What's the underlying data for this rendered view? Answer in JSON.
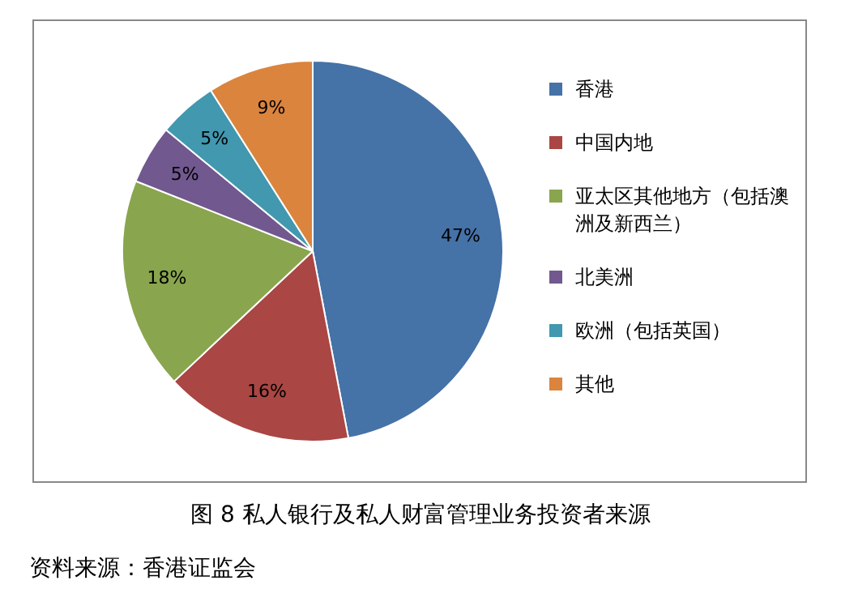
{
  "chart_data": {
    "type": "pie",
    "title": "图 8 私人银行及私人财富管理业务投资者来源",
    "categories": [
      "香港",
      "中国内地",
      "亚太区其他地方（包括澳洲及新西兰）",
      "北美洲",
      "欧洲（包括英国）",
      "其他"
    ],
    "values": [
      47,
      16,
      18,
      5,
      5,
      9
    ],
    "value_labels": [
      "47%",
      "16%",
      "18%",
      "5%",
      "5%",
      "9%"
    ],
    "colors": [
      "#4572a7",
      "#aa4643",
      "#89a54e",
      "#71588f",
      "#4198af",
      "#db843d"
    ],
    "legend": "right",
    "annotations": [
      "资料来源：香港证监会"
    ]
  }
}
